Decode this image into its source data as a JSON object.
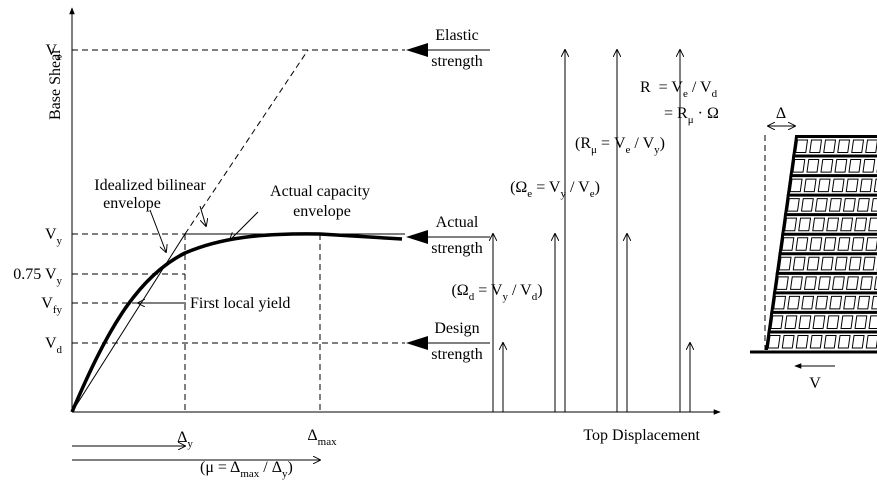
{
  "y_axis_title": "Base Shear",
  "x_axis_title": "Top Displacement",
  "y_levels": [
    [
      {
        "text": "V"
      },
      {
        "sub": "e"
      }
    ],
    [
      {
        "text": "V"
      },
      {
        "sub": "y"
      }
    ],
    [
      {
        "text": "0.75 V"
      },
      {
        "sub": "y"
      }
    ],
    [
      {
        "text": "V"
      },
      {
        "sub": "fy"
      }
    ],
    [
      {
        "text": "V"
      },
      {
        "sub": "d"
      }
    ]
  ],
  "x_levels": [
    [
      {
        "text": "Δ"
      },
      {
        "sub": "y"
      }
    ],
    [
      {
        "text": "Δ"
      },
      {
        "sub": "max"
      }
    ]
  ],
  "strength_labels": [
    [
      "Elastic",
      "strength"
    ],
    [
      "Actual",
      "strength"
    ],
    [
      "Design",
      "strength"
    ]
  ],
  "curve_labels": {
    "idealized": [
      "Idealized bilinear",
      "envelope"
    ],
    "actual": [
      "Actual capacity",
      "envelope"
    ],
    "first_yield": "First local yield"
  },
  "ductility": [
    {
      "text": "(μ = Δ"
    },
    {
      "sub": "max"
    },
    {
      "text": " / Δ"
    },
    {
      "sub": "y"
    },
    {
      "text": ")"
    }
  ],
  "ratios": [
    [
      {
        "text": "(Ω"
      },
      {
        "sub": "d"
      },
      {
        "text": " = V"
      },
      {
        "sub": "y"
      },
      {
        "text": " / V"
      },
      {
        "sub": "d"
      },
      {
        "text": ")"
      }
    ],
    [
      {
        "text": "(Ω"
      },
      {
        "sub": "e"
      },
      {
        "text": " = V"
      },
      {
        "sub": "y"
      },
      {
        "text": " / V"
      },
      {
        "sub": "e"
      },
      {
        "text": ")"
      }
    ],
    [
      {
        "text": "(R"
      },
      {
        "sub": "μ"
      },
      {
        "text": " = V"
      },
      {
        "sub": "e"
      },
      {
        "text": " / V"
      },
      {
        "sub": "y"
      },
      {
        "text": ")"
      }
    ],
    [
      {
        "text": "R  = V"
      },
      {
        "sub": "e"
      },
      {
        "text": " / V"
      },
      {
        "sub": "d"
      }
    ],
    [
      {
        "text": "= R"
      },
      {
        "sub": "μ"
      },
      {
        "text": " · Ω"
      }
    ]
  ],
  "building": {
    "drift": "Δ",
    "shear": "V"
  }
}
